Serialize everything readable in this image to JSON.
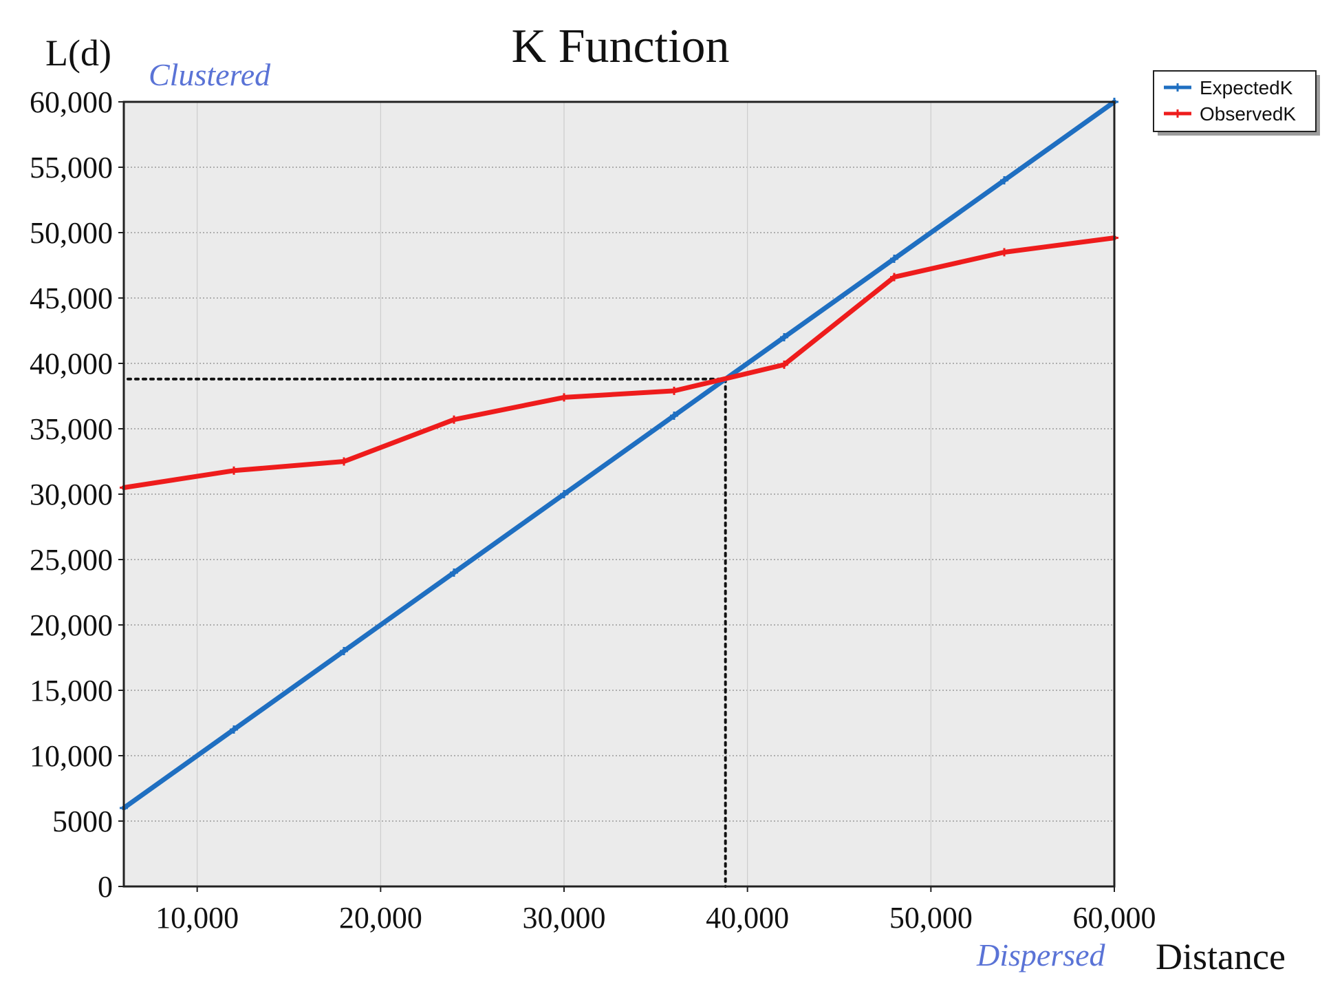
{
  "chart_data": {
    "type": "line",
    "title": "K Function",
    "ylabel": "L(d)",
    "xlabel": "Distance",
    "annotations": {
      "top": "Clustered",
      "bottom": "Dispersed"
    },
    "xlim": [
      6000,
      60000
    ],
    "ylim": [
      0,
      60000
    ],
    "xticks": [
      10000,
      20000,
      30000,
      40000,
      50000,
      60000
    ],
    "xtick_labels": [
      "10,000",
      "20,000",
      "30,000",
      "40,000",
      "50,000",
      "60,000"
    ],
    "yticks": [
      0,
      5000,
      10000,
      15000,
      20000,
      25000,
      30000,
      35000,
      40000,
      45000,
      50000,
      55000,
      60000
    ],
    "ytick_labels": [
      "0",
      "5000",
      "10,000",
      "15,000",
      "20,000",
      "25,000",
      "30,000",
      "35,000",
      "40,000",
      "45,000",
      "50,000",
      "55,000",
      "60,000"
    ],
    "grid": true,
    "legend_position": "top-right outside",
    "series": [
      {
        "name": "ExpectedK",
        "color": "#1f6fc1",
        "x": [
          6000,
          12000,
          18000,
          24000,
          30000,
          36000,
          42000,
          48000,
          54000,
          60000
        ],
        "y": [
          6000,
          12000,
          18000,
          24000,
          30000,
          36000,
          42000,
          48000,
          54000,
          60000
        ]
      },
      {
        "name": "ObservedK",
        "color": "#ee1c1c",
        "x": [
          6000,
          12000,
          18000,
          24000,
          30000,
          36000,
          42000,
          48000,
          54000,
          60000
        ],
        "y": [
          30500,
          31800,
          32500,
          35700,
          37400,
          37900,
          39900,
          46600,
          48500,
          49600
        ]
      }
    ],
    "reference_lines": {
      "x": 38800,
      "y": 38800,
      "style": "dotted"
    }
  }
}
